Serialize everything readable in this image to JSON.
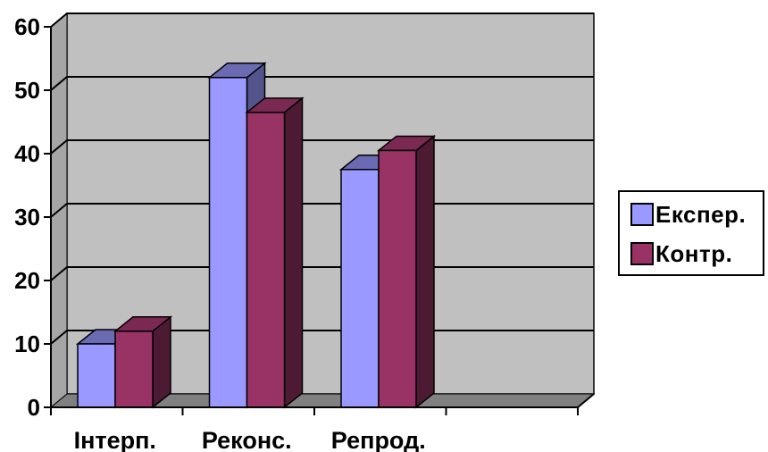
{
  "chart_data": {
    "type": "bar",
    "categories": [
      "Інтерп.",
      "Реконс.",
      "Репрод."
    ],
    "series": [
      {
        "name": "Експер.",
        "values": [
          10,
          52,
          37.5
        ],
        "color": "#9999FF"
      },
      {
        "name": "Контр.",
        "values": [
          12,
          46.5,
          40.5
        ],
        "color": "#993366"
      }
    ],
    "ylim": [
      0,
      60
    ],
    "yticks": [
      0,
      10,
      20,
      30,
      40,
      50,
      60
    ],
    "grid": true,
    "legend": "right",
    "plot_background": "#C0C0C0"
  }
}
